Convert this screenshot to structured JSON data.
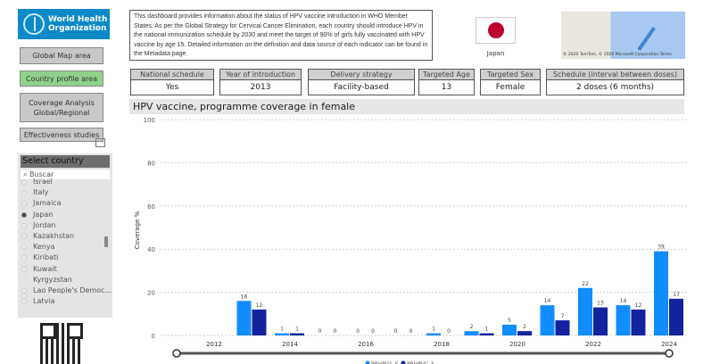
{
  "logo": {
    "text_line1": "World Health",
    "text_line2": "Organization"
  },
  "nav": {
    "global_map": "Global Map area",
    "country_profile": "Country profile area",
    "coverage_analysis": "Coverage Analysis Global/Regional",
    "effectiveness": "Effectiveness studies"
  },
  "description": "This dashboard provides information about the status of HPV vaccine introduction in WHO Member States.  As per the Global Strategy for Cervical Cancer Elimination, each country should introduce HPV in the national immunization schedule by 2030 and meet the target of 90% of girls fully vaccinated with HPV vaccine by age 15. Detailed information on the definition and data source of each indicator can be found in the Metadata page.",
  "country": {
    "name": "Japan",
    "flag_color": "#bc002d"
  },
  "map": {
    "credit": "© 2020 TomTom, © 2020 Microsoft Corporation  Terms"
  },
  "kpis": [
    {
      "label": "National schedule",
      "value": "Yes"
    },
    {
      "label": "Year of introduction",
      "value": "2013"
    },
    {
      "label": "Delivery strategy",
      "value": "Facility-based"
    },
    {
      "label": "Targeted Age",
      "value": "13"
    },
    {
      "label": "Targeted Sex",
      "value": "Female"
    },
    {
      "label": "Schedule (interval between doses)",
      "value": "2 doses (6 months)"
    }
  ],
  "slicer": {
    "title": "Select country",
    "search_placeholder": "Buscar",
    "items": [
      "Israel",
      "Italy",
      "Jamaica",
      "Japan",
      "Jordan",
      "Kazakhstan",
      "Kenya",
      "Kiribati",
      "Kuwait",
      "Kyrgyzstan",
      "Lao People's Democ...",
      "Latvia"
    ],
    "selected": "Japan"
  },
  "chart_data": {
    "type": "bar",
    "title": "HPV vaccine, programme coverage in female",
    "ylabel": "Coverage %",
    "xlabel": "",
    "ylim": [
      0,
      100
    ],
    "yticks": [
      "0",
      "20",
      "40",
      "60",
      "80",
      "100"
    ],
    "xticks": [
      "2012",
      "2014",
      "2016",
      "2018",
      "2020",
      "2022",
      "2024"
    ],
    "categories": [
      2013,
      2014,
      2015,
      2016,
      2017,
      2018,
      2019,
      2020,
      2021,
      2022,
      2023,
      2024
    ],
    "series": [
      {
        "name": "PRHPV1_F",
        "color": "#118dff",
        "values": [
          16,
          1,
          0,
          0,
          0,
          1,
          2,
          5,
          14,
          22,
          14,
          39
        ]
      },
      {
        "name": "PRHPVC_F",
        "color": "#12239e",
        "values": [
          12,
          1,
          0,
          0,
          0,
          0,
          1,
          2,
          7,
          13,
          12,
          17
        ]
      }
    ],
    "legend": "bottom-center",
    "grid": true
  }
}
